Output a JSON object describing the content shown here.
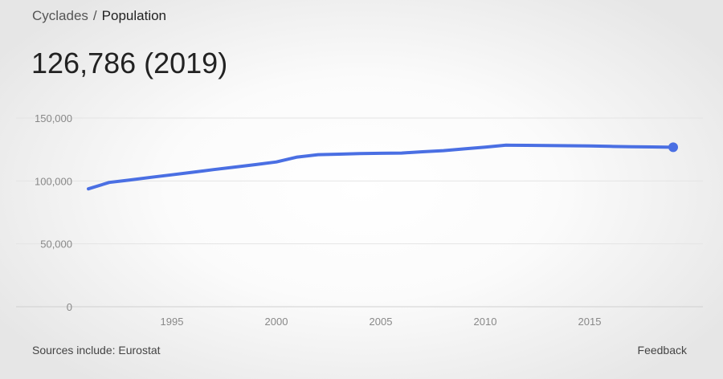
{
  "breadcrumb": {
    "parent": "Cyclades",
    "separator": "/",
    "current": "Population"
  },
  "headline": "126,786 (2019)",
  "footer": {
    "sources": "Sources include: Eurostat",
    "feedback": "Feedback"
  },
  "chart_data": {
    "type": "line",
    "title": "",
    "xlabel": "",
    "ylabel": "",
    "ylim": [
      0,
      150000
    ],
    "xlim": [
      1991,
      2019
    ],
    "grid": true,
    "line_color": "#4a6fe3",
    "y_ticks": [
      "0",
      "50,000",
      "100,000",
      "150,000"
    ],
    "y_tick_values": [
      0,
      50000,
      100000,
      150000
    ],
    "x_ticks": [
      "1995",
      "2000",
      "2005",
      "2010",
      "2015"
    ],
    "x_tick_values": [
      1995,
      2000,
      2005,
      2010,
      2015
    ],
    "x": [
      1991,
      1992,
      1993,
      1994,
      1995,
      1996,
      1997,
      1998,
      1999,
      2000,
      2001,
      2002,
      2003,
      2004,
      2005,
      2006,
      2007,
      2008,
      2009,
      2010,
      2011,
      2012,
      2013,
      2014,
      2015,
      2016,
      2017,
      2018,
      2019
    ],
    "values": [
      93700,
      98800,
      100800,
      102900,
      104900,
      106900,
      109000,
      111000,
      113000,
      115100,
      119000,
      120900,
      121300,
      121700,
      122000,
      122200,
      123200,
      124100,
      125500,
      126900,
      128400,
      128300,
      128200,
      128000,
      127800,
      127500,
      127200,
      127000,
      126786
    ]
  }
}
